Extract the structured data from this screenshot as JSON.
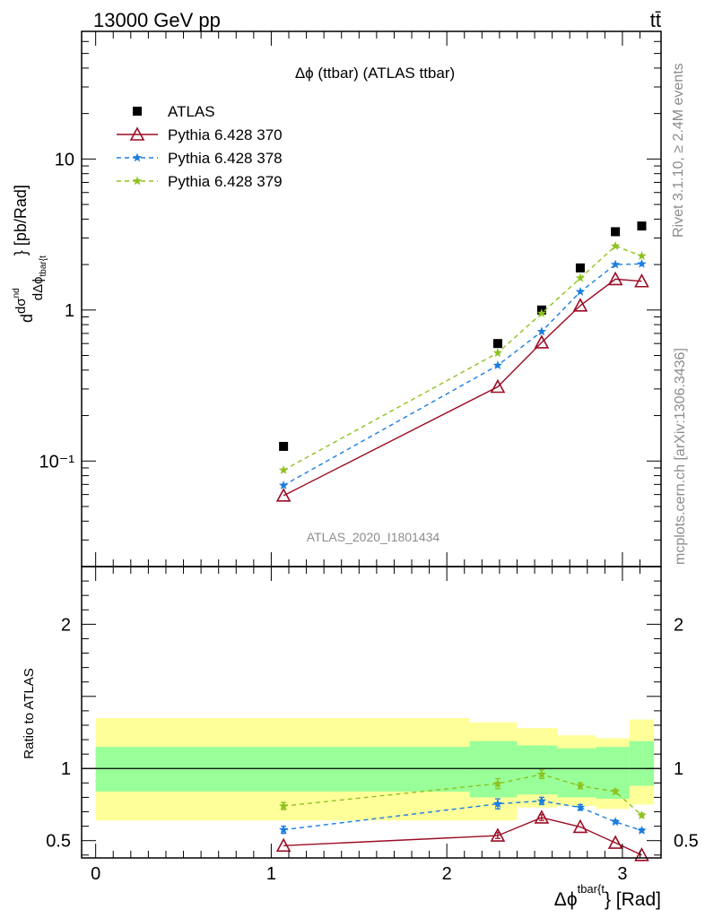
{
  "header": {
    "energy_label": "13000 GeV pp",
    "process_label": "tt̄"
  },
  "side_labels": {
    "rivet": "Rivet 3.1.10, ≥ 2.4M events",
    "source": "mcplots.cern.ch [arXiv:1306.3436]"
  },
  "chart_data": [
    {
      "type": "scatter",
      "title": "Δϕ (ttbar) (ATLAS ttbar)",
      "watermark": "ATLAS_2020_I1801434",
      "ylabel": "dσ/dΔϕ [pb/Rad]",
      "yscale": "log",
      "xlim": [
        -0.08,
        3.22
      ],
      "ylim": [
        0.02,
        70
      ],
      "y_ticks": [
        {
          "value": 0.1,
          "label": "10⁻¹"
        },
        {
          "value": 1,
          "label": "1"
        },
        {
          "value": 10,
          "label": "10"
        }
      ],
      "legend_position": "top-left",
      "series": [
        {
          "name": "ATLAS",
          "color": "#000000",
          "marker": "square",
          "line": "none",
          "x": [
            1.07,
            2.29,
            2.54,
            2.76,
            2.96,
            3.11
          ],
          "y": [
            0.125,
            0.6,
            1.0,
            1.9,
            3.3,
            3.6
          ]
        },
        {
          "name": "Pythia 6.428 370",
          "color": "#9b0c24",
          "marker": "triangle-open",
          "line": "solid",
          "x": [
            1.07,
            2.29,
            2.54,
            2.76,
            2.96,
            3.11
          ],
          "y": [
            0.059,
            0.31,
            0.61,
            1.07,
            1.6,
            1.55
          ]
        },
        {
          "name": "Pythia 6.428 378",
          "color": "#1a7ee0",
          "marker": "star",
          "line": "dashed",
          "x": [
            1.07,
            2.29,
            2.54,
            2.76,
            2.96,
            3.11
          ],
          "y": [
            0.069,
            0.43,
            0.72,
            1.32,
            2.0,
            2.02
          ]
        },
        {
          "name": "Pythia 6.428 379",
          "color": "#8ec21f",
          "marker": "star",
          "line": "dashed",
          "x": [
            1.07,
            2.29,
            2.54,
            2.76,
            2.96,
            3.11
          ],
          "y": [
            0.087,
            0.52,
            0.95,
            1.63,
            2.65,
            2.28
          ]
        }
      ]
    },
    {
      "type": "line",
      "ylabel": "Ratio to ATLAS",
      "xlabel": "Δϕ",
      "xlabel_sup": "tbar{t",
      "xlabel_tail": "} [Rad]",
      "xlim": [
        -0.08,
        3.22
      ],
      "ylim": [
        0.38,
        2.4
      ],
      "x_ticks": [
        0,
        1,
        2,
        3
      ],
      "y_ticks": [
        0.5,
        1,
        2
      ],
      "reference_line": 1,
      "bands": [
        {
          "x_start": 0.0,
          "x_end": 2.13,
          "inner": [
            0.84,
            1.15
          ],
          "outer": [
            0.64,
            1.35
          ]
        },
        {
          "x_start": 2.13,
          "x_end": 2.4,
          "inner": [
            0.8,
            1.19
          ],
          "outer": [
            0.64,
            1.32
          ]
        },
        {
          "x_start": 2.4,
          "x_end": 2.63,
          "inner": [
            0.82,
            1.16
          ],
          "outer": [
            0.73,
            1.28
          ]
        },
        {
          "x_start": 2.63,
          "x_end": 2.85,
          "inner": [
            0.8,
            1.14
          ],
          "outer": [
            0.74,
            1.23
          ]
        },
        {
          "x_start": 2.85,
          "x_end": 3.04,
          "inner": [
            0.79,
            1.15
          ],
          "outer": [
            0.72,
            1.21
          ]
        },
        {
          "x_start": 3.04,
          "x_end": 3.18,
          "inner": [
            0.88,
            1.19
          ],
          "outer": [
            0.75,
            1.34
          ]
        }
      ],
      "series": [
        {
          "name": "Pythia 6.428 370",
          "color": "#9b0c24",
          "marker": "triangle-open",
          "line": "solid",
          "x": [
            1.07,
            2.29,
            2.54,
            2.76,
            2.96,
            3.11
          ],
          "y": [
            0.465,
            0.535,
            0.66,
            0.595,
            0.485,
            0.4
          ],
          "err": [
            0.0,
            0.02,
            0.02,
            0.0,
            0.0,
            0.0
          ]
        },
        {
          "name": "Pythia 6.428 378",
          "color": "#1a7ee0",
          "marker": "star",
          "line": "dashed",
          "x": [
            1.07,
            2.29,
            2.54,
            2.76,
            2.96,
            3.11
          ],
          "y": [
            0.575,
            0.755,
            0.775,
            0.73,
            0.63,
            0.57
          ],
          "err": [
            0.025,
            0.035,
            0.025,
            0.02,
            0.012,
            0.012
          ]
        },
        {
          "name": "Pythia 6.428 379",
          "color": "#8ec21f",
          "marker": "star",
          "line": "dashed",
          "x": [
            1.07,
            2.29,
            2.54,
            2.76,
            2.96,
            3.11
          ],
          "y": [
            0.74,
            0.895,
            0.96,
            0.88,
            0.84,
            0.675
          ],
          "err": [
            0.025,
            0.035,
            0.03,
            0.02,
            0.015,
            0.015
          ]
        }
      ]
    }
  ]
}
